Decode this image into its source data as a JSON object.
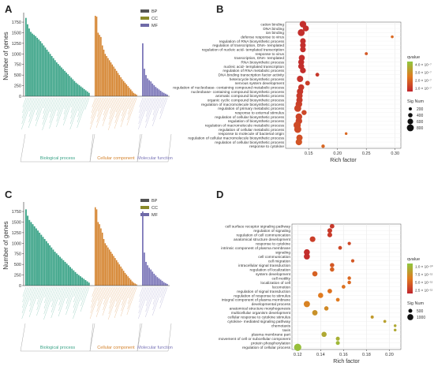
{
  "panels": {
    "A": "A",
    "B": "B",
    "C": "C",
    "D": "D"
  },
  "colors": {
    "BP": "#3aa387",
    "CC": "#d4822c",
    "MF": "#7b76b8",
    "legend_bp": "#555555",
    "legend_cc": "#8a8a2a",
    "legend_mf": "#6f6aa8",
    "qvalue_low": "#c0262d",
    "qvalue_mid": "#e07a1f",
    "qvalue_high": "#8fc73e"
  },
  "chart_data": [
    {
      "panel": "A",
      "type": "bar",
      "ylabel": "Number of genes",
      "ylim": [
        0,
        1900
      ],
      "yticks": [
        0,
        250,
        500,
        750,
        1000,
        1250,
        1500,
        1750
      ],
      "legend": [
        "BP",
        "CC",
        "MF"
      ],
      "group_labels": [
        "Biological process",
        "Cellular component",
        "Molecular function"
      ],
      "series": [
        {
          "name": "BP",
          "values": [
            1850,
            1700,
            1600,
            1520,
            1480,
            1450,
            1420,
            1380,
            1340,
            1300,
            1250,
            1200,
            1150,
            1100,
            1050,
            1000,
            950,
            900,
            850,
            800,
            760,
            720,
            680,
            640,
            600,
            560,
            520,
            480,
            440,
            400,
            360,
            320,
            290,
            260,
            230,
            200,
            170,
            140,
            110,
            80
          ]
        },
        {
          "name": "CC",
          "values": [
            1900,
            1880,
            1500,
            1450,
            1400,
            1200,
            1100,
            1000,
            950,
            900,
            850,
            800,
            750,
            700,
            650,
            600,
            550,
            500,
            450,
            400,
            360,
            320,
            280,
            240,
            200,
            160,
            120,
            80,
            60,
            40
          ]
        },
        {
          "name": "MF",
          "values": [
            1250,
            650,
            500,
            420,
            380,
            350,
            300,
            260,
            220,
            190,
            160,
            130,
            100,
            80,
            60,
            40
          ]
        }
      ]
    },
    {
      "panel": "B",
      "type": "scatter",
      "xlabel": "Rich factor",
      "xlim": [
        0.11,
        0.31
      ],
      "xticks": [
        0.15,
        0.2,
        0.25,
        0.3
      ],
      "legend_qvalue_title": "qvalue",
      "legend_qvalue_ticks": [
        "4.0 × 10⁻⁷",
        "3.0 × 10⁻⁷",
        "2.0 × 10⁻⁷",
        "1.0 × 10⁻⁷"
      ],
      "legend_size_title": "Sig Num",
      "legend_size_ticks": [
        "200",
        "400",
        "600",
        "800"
      ],
      "terms": [
        {
          "label": "cation binding",
          "x": 0.14,
          "q": 0.05,
          "size": 750
        },
        {
          "label": "DNA binding",
          "x": 0.145,
          "q": 0.05,
          "size": 650
        },
        {
          "label": "ion binding",
          "x": 0.137,
          "q": 0.05,
          "size": 800
        },
        {
          "label": "defense response to virus",
          "x": 0.295,
          "q": 0.4,
          "size": 150
        },
        {
          "label": "regulation of RNA biosynthetic process",
          "x": 0.14,
          "q": 0.05,
          "size": 600
        },
        {
          "label": "regulation of transcription, DNA- templated",
          "x": 0.14,
          "q": 0.05,
          "size": 600
        },
        {
          "label": "regulation of nucleic acid- templated transcription",
          "x": 0.14,
          "q": 0.05,
          "size": 600
        },
        {
          "label": "response to virus",
          "x": 0.25,
          "q": 0.3,
          "size": 180
        },
        {
          "label": "transcription, DNA- templated",
          "x": 0.138,
          "q": 0.05,
          "size": 650
        },
        {
          "label": "RNA biosynthetic process",
          "x": 0.137,
          "q": 0.05,
          "size": 650
        },
        {
          "label": "nucleic acid- templated transcription",
          "x": 0.137,
          "q": 0.05,
          "size": 650
        },
        {
          "label": "regulation of RNA metabolic process",
          "x": 0.14,
          "q": 0.05,
          "size": 620
        },
        {
          "label": "DNA binding transcription factor activity",
          "x": 0.165,
          "q": 0.1,
          "size": 300
        },
        {
          "label": "heterocycle biosynthetic process",
          "x": 0.135,
          "q": 0.08,
          "size": 700
        },
        {
          "label": "nervous system development",
          "x": 0.148,
          "q": 0.15,
          "size": 450
        },
        {
          "label": "regulation of nucleobase- containing compound metabolic process",
          "x": 0.137,
          "q": 0.1,
          "size": 650
        },
        {
          "label": "nucleobase- containing compound biosynthetic process",
          "x": 0.135,
          "q": 0.1,
          "size": 700
        },
        {
          "label": "aromatic compound biosynthetic process",
          "x": 0.134,
          "q": 0.12,
          "size": 700
        },
        {
          "label": "organic cyclic compound biosynthetic process",
          "x": 0.134,
          "q": 0.12,
          "size": 700
        },
        {
          "label": "regulation of macromolecule biosynthetic process",
          "x": 0.133,
          "q": 0.15,
          "size": 750
        },
        {
          "label": "regulation of primary metabolic process",
          "x": 0.131,
          "q": 0.18,
          "size": 800
        },
        {
          "label": "response to external stimulus",
          "x": 0.142,
          "q": 0.2,
          "size": 500
        },
        {
          "label": "regulation of cellular biosynthetic process",
          "x": 0.133,
          "q": 0.18,
          "size": 750
        },
        {
          "label": "regulation of biosynthetic process",
          "x": 0.133,
          "q": 0.18,
          "size": 750
        },
        {
          "label": "regulation of macromolecule metabolic process",
          "x": 0.13,
          "q": 0.22,
          "size": 850
        },
        {
          "label": "regulation of cellular metabolic process",
          "x": 0.131,
          "q": 0.22,
          "size": 820
        },
        {
          "label": "response to molecule of bacterial origin",
          "x": 0.215,
          "q": 0.4,
          "size": 120
        },
        {
          "label": "regulation of cellular macromolecule biosynthetic process",
          "x": 0.134,
          "q": 0.25,
          "size": 700
        },
        {
          "label": "regulation of cellular biosynthetic process",
          "x": 0.133,
          "q": 0.28,
          "size": 730
        },
        {
          "label": "response to cytokine",
          "x": 0.175,
          "q": 0.38,
          "size": 250
        }
      ]
    },
    {
      "panel": "C",
      "type": "bar",
      "ylabel": "Number of genes",
      "ylim": [
        0,
        1900
      ],
      "yticks": [
        0,
        250,
        500,
        750,
        1000,
        1250,
        1500,
        1750
      ],
      "legend": [
        "BP",
        "CC",
        "MF"
      ],
      "group_labels": [
        "Biological process",
        "Cellular component",
        "Molecular function"
      ],
      "series": [
        {
          "name": "BP",
          "values": [
            1800,
            1650,
            1550,
            1500,
            1450,
            1400,
            1350,
            1300,
            1250,
            1200,
            1150,
            1100,
            1050,
            1000,
            950,
            900,
            850,
            800,
            760,
            720,
            680,
            640,
            600,
            560,
            520,
            480,
            440,
            400,
            360,
            320,
            280,
            250,
            220,
            190,
            160,
            130,
            100,
            70
          ]
        },
        {
          "name": "CC",
          "values": [
            1850,
            1800,
            1500,
            1450,
            1350,
            1250,
            1100,
            1000,
            950,
            900,
            850,
            800,
            750,
            700,
            650,
            600,
            550,
            500,
            450,
            400,
            350,
            300,
            260,
            220,
            180,
            140,
            100,
            70,
            50,
            30
          ]
        },
        {
          "name": "MF",
          "values": [
            1750,
            780,
            560,
            480,
            420,
            380,
            330,
            280,
            240,
            200,
            170,
            140,
            110,
            80,
            60,
            40
          ]
        }
      ]
    },
    {
      "panel": "D",
      "type": "scatter",
      "xlabel": "Rich factor",
      "xlim": [
        0.115,
        0.21
      ],
      "xticks": [
        0.12,
        0.14,
        0.16,
        0.18,
        0.2
      ],
      "legend_qvalue_title": "qvalue",
      "legend_qvalue_ticks": [
        "1.0 × 10⁻¹⁰",
        "7.5 × 10⁻¹¹",
        "5.0 × 10⁻¹¹",
        "2.5 × 10⁻¹¹"
      ],
      "legend_size_title": "Sig Num",
      "legend_size_ticks": [
        "500",
        "1000"
      ],
      "terms": [
        {
          "label": "cell surface receptor signaling pathway",
          "x": 0.15,
          "q": 0.1,
          "size": 650
        },
        {
          "label": "regulation of signaling",
          "x": 0.148,
          "q": 0.12,
          "size": 700
        },
        {
          "label": "regulation of cell communication",
          "x": 0.148,
          "q": 0.12,
          "size": 700
        },
        {
          "label": "anatomical structure development",
          "x": 0.133,
          "q": 0.15,
          "size": 900
        },
        {
          "label": "response to cytokine",
          "x": 0.165,
          "q": 0.2,
          "size": 350
        },
        {
          "label": "intrinsic component of plasma membrane",
          "x": 0.157,
          "q": 0.2,
          "size": 450
        },
        {
          "label": "signaling",
          "x": 0.128,
          "q": 0.05,
          "size": 1000
        },
        {
          "label": "cell communication",
          "x": 0.128,
          "q": 0.05,
          "size": 1000
        },
        {
          "label": "cell migration",
          "x": 0.168,
          "q": 0.3,
          "size": 350
        },
        {
          "label": "intracellular signal transduction",
          "x": 0.15,
          "q": 0.3,
          "size": 600
        },
        {
          "label": "regulation of localization",
          "x": 0.15,
          "q": 0.35,
          "size": 600
        },
        {
          "label": "system development",
          "x": 0.135,
          "q": 0.35,
          "size": 800
        },
        {
          "label": "cell motility",
          "x": 0.165,
          "q": 0.4,
          "size": 400
        },
        {
          "label": "localization of cell",
          "x": 0.165,
          "q": 0.4,
          "size": 400
        },
        {
          "label": "locomotion",
          "x": 0.16,
          "q": 0.45,
          "size": 450
        },
        {
          "label": "regulation of signal transduction",
          "x": 0.148,
          "q": 0.45,
          "size": 650
        },
        {
          "label": "regulation of response to stimulus",
          "x": 0.14,
          "q": 0.5,
          "size": 800
        },
        {
          "label": "integral component of plasma membrane",
          "x": 0.155,
          "q": 0.5,
          "size": 450
        },
        {
          "label": "developmental process",
          "x": 0.128,
          "q": 0.55,
          "size": 1050
        },
        {
          "label": "anatomical structure morphogenesis",
          "x": 0.145,
          "q": 0.6,
          "size": 600
        },
        {
          "label": "multicellular organism development",
          "x": 0.135,
          "q": 0.65,
          "size": 850
        },
        {
          "label": "cellular response to cytokine stimulus",
          "x": 0.185,
          "q": 0.7,
          "size": 300
        },
        {
          "label": "cytokine- mediated signaling pathway",
          "x": 0.196,
          "q": 0.75,
          "size": 250
        },
        {
          "label": "chemotaxis",
          "x": 0.205,
          "q": 0.8,
          "size": 200
        },
        {
          "label": "taxis",
          "x": 0.205,
          "q": 0.8,
          "size": 200
        },
        {
          "label": "plasma membrane part",
          "x": 0.143,
          "q": 0.8,
          "size": 800
        },
        {
          "label": "movement of cell or subcellular component",
          "x": 0.155,
          "q": 0.85,
          "size": 500
        },
        {
          "label": "protein phosphorylation",
          "x": 0.155,
          "q": 0.9,
          "size": 500
        },
        {
          "label": "regulation of cellular process",
          "x": 0.12,
          "q": 0.95,
          "size": 1300
        }
      ]
    }
  ]
}
